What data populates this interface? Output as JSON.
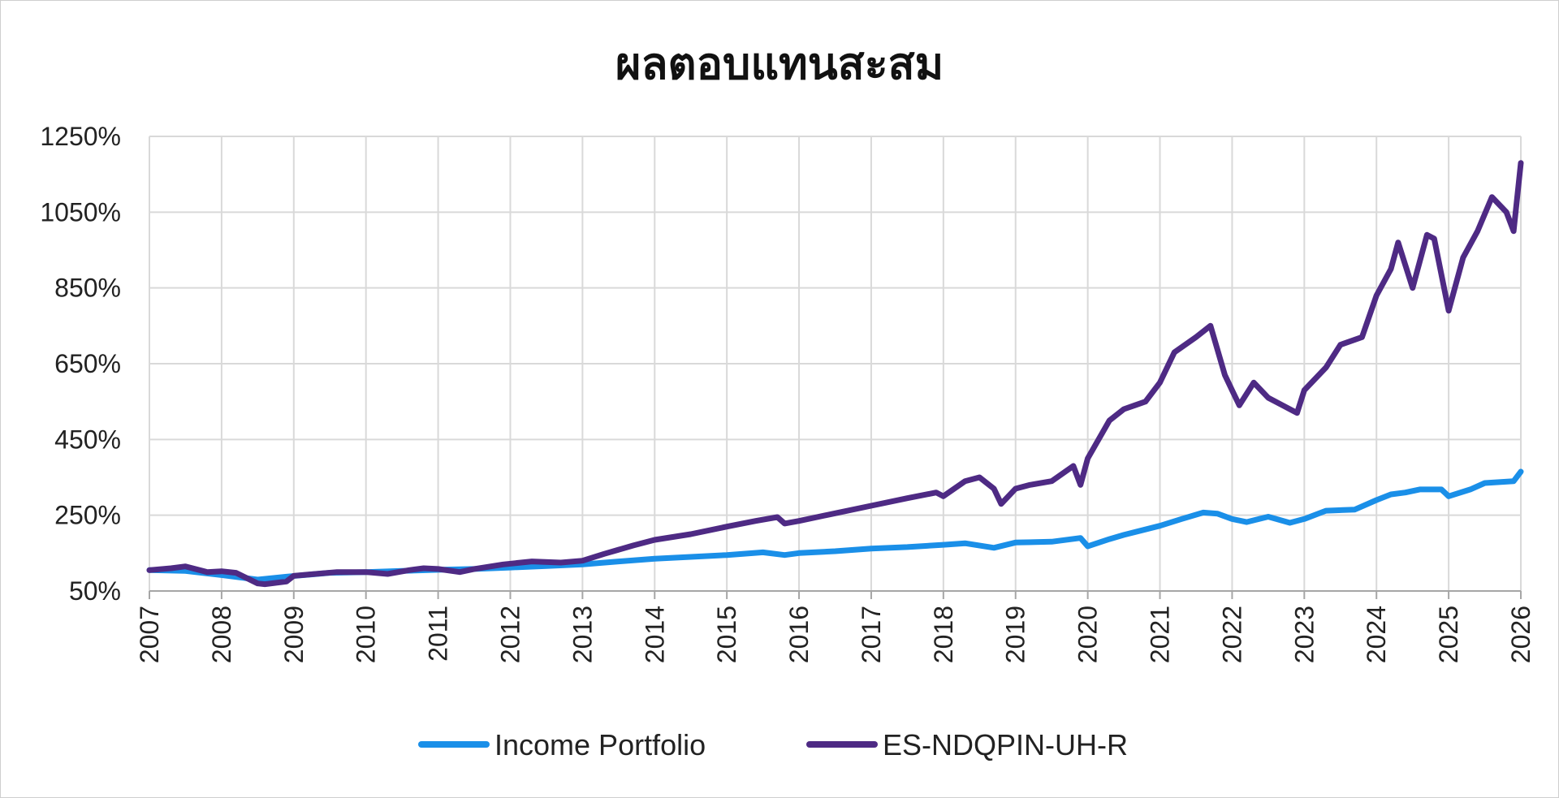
{
  "chart_data": {
    "type": "line",
    "title": "ผลตอบแทนสะสม",
    "xlabel": "",
    "ylabel": "",
    "ylim": [
      50,
      1250
    ],
    "yticks": [
      "50%",
      "250%",
      "450%",
      "650%",
      "850%",
      "1050%",
      "1250%"
    ],
    "ytick_values": [
      50,
      250,
      450,
      650,
      850,
      1050,
      1250
    ],
    "xlim": [
      2007,
      2026
    ],
    "xticks": [
      "2007",
      "2008",
      "2009",
      "2010",
      "2011",
      "2012",
      "2013",
      "2014",
      "2015",
      "2016",
      "2017",
      "2018",
      "2019",
      "2020",
      "2021",
      "2022",
      "2023",
      "2024",
      "2025",
      "2026"
    ],
    "grid": true,
    "legend_position": "bottom",
    "series": [
      {
        "name": "Income Portfolio",
        "color": "#1a8fe8",
        "x": [
          2007.0,
          2007.5,
          2008.0,
          2008.5,
          2008.9,
          2009.5,
          2010.0,
          2010.5,
          2011.0,
          2011.5,
          2012.0,
          2012.5,
          2013.0,
          2013.5,
          2014.0,
          2014.5,
          2015.0,
          2015.5,
          2015.8,
          2016.0,
          2016.5,
          2017.0,
          2017.5,
          2018.0,
          2018.3,
          2018.7,
          2019.0,
          2019.5,
          2019.9,
          2020.0,
          2020.3,
          2020.5,
          2021.0,
          2021.3,
          2021.6,
          2021.8,
          2022.0,
          2022.2,
          2022.5,
          2022.8,
          2023.0,
          2023.3,
          2023.7,
          2024.0,
          2024.2,
          2024.4,
          2024.6,
          2024.9,
          2025.0,
          2025.3,
          2025.5,
          2025.9,
          2026.0
        ],
        "y": [
          105,
          103,
          92,
          80,
          88,
          98,
          100,
          103,
          106,
          108,
          112,
          116,
          120,
          128,
          135,
          140,
          145,
          152,
          145,
          150,
          155,
          162,
          166,
          172,
          176,
          164,
          178,
          180,
          190,
          168,
          187,
          198,
          222,
          240,
          257,
          254,
          240,
          232,
          246,
          230,
          240,
          262,
          265,
          290,
          305,
          310,
          318,
          318,
          300,
          318,
          335,
          340,
          365
        ]
      },
      {
        "name": "ES-NDQPIN-UH-R",
        "color": "#4e2a84",
        "x": [
          2007.0,
          2007.3,
          2007.5,
          2007.8,
          2008.0,
          2008.2,
          2008.5,
          2008.6,
          2008.9,
          2009.0,
          2009.3,
          2009.6,
          2010.0,
          2010.3,
          2010.6,
          2010.8,
          2011.0,
          2011.3,
          2011.5,
          2011.9,
          2012.3,
          2012.7,
          2013.0,
          2013.3,
          2013.7,
          2014.0,
          2014.5,
          2015.0,
          2015.4,
          2015.7,
          2015.8,
          2016.0,
          2016.5,
          2017.0,
          2017.5,
          2017.9,
          2018.0,
          2018.3,
          2018.5,
          2018.7,
          2018.8,
          2019.0,
          2019.2,
          2019.5,
          2019.8,
          2019.9,
          2020.0,
          2020.3,
          2020.5,
          2020.8,
          2021.0,
          2021.2,
          2021.5,
          2021.7,
          2021.9,
          2022.0,
          2022.1,
          2022.3,
          2022.5,
          2022.7,
          2022.9,
          2023.0,
          2023.3,
          2023.5,
          2023.8,
          2024.0,
          2024.2,
          2024.3,
          2024.5,
          2024.7,
          2024.8,
          2025.0,
          2025.2,
          2025.4,
          2025.6,
          2025.8,
          2025.9,
          2026.0
        ],
        "y": [
          105,
          110,
          115,
          100,
          102,
          98,
          70,
          68,
          75,
          90,
          95,
          100,
          100,
          95,
          105,
          110,
          108,
          100,
          108,
          120,
          128,
          125,
          130,
          148,
          170,
          185,
          200,
          220,
          235,
          245,
          228,
          235,
          255,
          275,
          295,
          310,
          300,
          340,
          350,
          320,
          280,
          320,
          330,
          340,
          380,
          330,
          400,
          500,
          530,
          550,
          600,
          680,
          720,
          750,
          620,
          580,
          540,
          600,
          560,
          540,
          520,
          580,
          640,
          700,
          720,
          830,
          900,
          970,
          850,
          990,
          980,
          790,
          930,
          1000,
          1090,
          1050,
          1000,
          1180
        ]
      }
    ]
  }
}
